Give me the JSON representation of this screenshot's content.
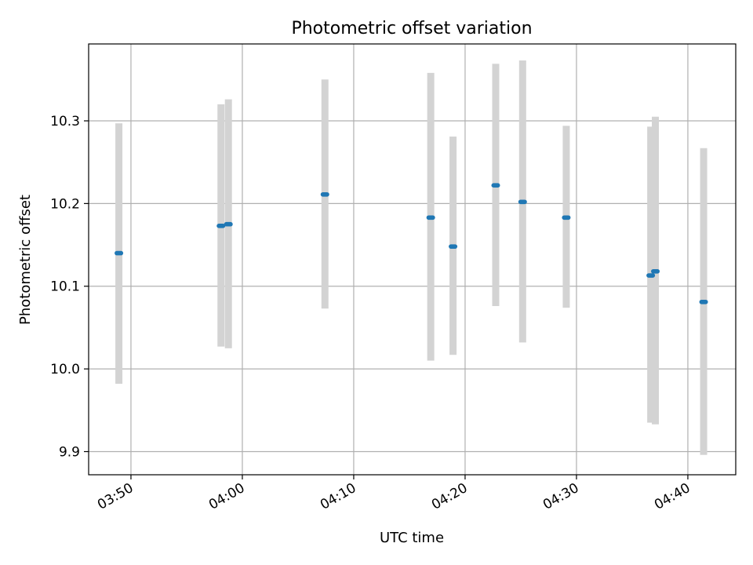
{
  "chart_data": {
    "type": "scatter",
    "title": "Photometric offset variation",
    "xlabel": "UTC time",
    "ylabel": "Photometric offset",
    "x_ticks": [
      "03:50",
      "04:00",
      "04:10",
      "04:20",
      "04:30",
      "04:40"
    ],
    "x_tick_minutes": [
      230,
      240,
      250,
      260,
      270,
      280
    ],
    "y_ticks": [
      9.9,
      10.0,
      10.1,
      10.2,
      10.3
    ],
    "xlim_minutes": [
      226.2,
      284.3
    ],
    "ylim": [
      9.872,
      10.393
    ],
    "grid": true,
    "x_time_format": "HH:MM",
    "errorbar_color": "#d3d3d3",
    "point_color": "#1f77b4",
    "points": [
      {
        "time": "03:48:55",
        "value": 10.14,
        "low": 9.982,
        "high": 10.297
      },
      {
        "time": "03:58:05",
        "value": 10.173,
        "low": 10.027,
        "high": 10.32
      },
      {
        "time": "03:58:45",
        "value": 10.175,
        "low": 10.025,
        "high": 10.326
      },
      {
        "time": "04:07:25",
        "value": 10.211,
        "low": 10.073,
        "high": 10.35
      },
      {
        "time": "04:16:55",
        "value": 10.183,
        "low": 10.01,
        "high": 10.358
      },
      {
        "time": "04:18:55",
        "value": 10.148,
        "low": 10.017,
        "high": 10.281
      },
      {
        "time": "04:22:45",
        "value": 10.222,
        "low": 10.076,
        "high": 10.369
      },
      {
        "time": "04:25:10",
        "value": 10.202,
        "low": 10.032,
        "high": 10.373
      },
      {
        "time": "04:29:05",
        "value": 10.183,
        "low": 10.074,
        "high": 10.294
      },
      {
        "time": "04:36:40",
        "value": 10.113,
        "low": 9.935,
        "high": 10.293
      },
      {
        "time": "04:37:05",
        "value": 10.118,
        "low": 9.933,
        "high": 10.305
      },
      {
        "time": "04:41:25",
        "value": 10.081,
        "low": 9.896,
        "high": 10.267
      }
    ]
  }
}
